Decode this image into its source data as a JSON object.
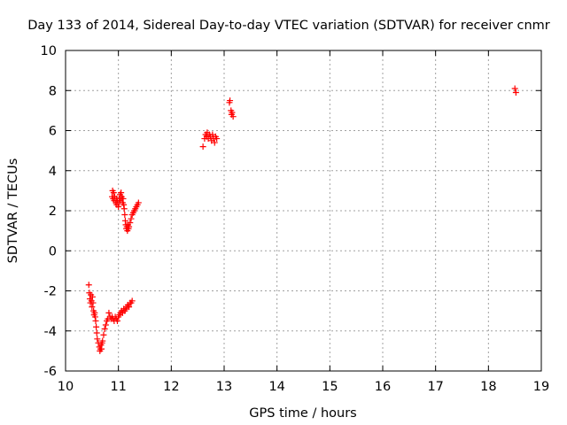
{
  "chart_data": {
    "type": "scatter",
    "title": "Day 133 of 2014, Sidereal Day-to-day VTEC variation (SDTVAR) for receiver cnmr",
    "xlabel": "GPS time / hours",
    "ylabel": "SDTVAR / TECUs",
    "xlim": [
      10,
      19
    ],
    "ylim": [
      -6,
      10
    ],
    "grid": true,
    "marker": "+",
    "xticks": [
      "10",
      "11",
      "12",
      "13",
      "14",
      "15",
      "16",
      "17",
      "18",
      "19"
    ],
    "yticks": [
      "-6",
      "-4",
      "-2",
      "0",
      "2",
      "4",
      "6",
      "8",
      "10"
    ],
    "series": [
      {
        "name": "SDTVAR",
        "color": "#ff0000",
        "points": [
          [
            10.44,
            -1.7
          ],
          [
            10.45,
            -2.1
          ],
          [
            10.46,
            -2.4
          ],
          [
            10.47,
            -2.6
          ],
          [
            10.48,
            -2.2
          ],
          [
            10.49,
            -2.5
          ],
          [
            10.5,
            -2.8
          ],
          [
            10.51,
            -2.3
          ],
          [
            10.52,
            -2.6
          ],
          [
            10.53,
            -3.0
          ],
          [
            10.54,
            -3.2
          ],
          [
            10.55,
            -3.1
          ],
          [
            10.56,
            -3.3
          ],
          [
            10.57,
            -3.5
          ],
          [
            10.58,
            -3.8
          ],
          [
            10.59,
            -4.1
          ],
          [
            10.6,
            -4.4
          ],
          [
            10.62,
            -4.6
          ],
          [
            10.64,
            -4.8
          ],
          [
            10.65,
            -5.0
          ],
          [
            10.66,
            -4.9
          ],
          [
            10.67,
            -4.7
          ],
          [
            10.68,
            -4.9
          ],
          [
            10.69,
            -4.6
          ],
          [
            10.7,
            -4.5
          ],
          [
            10.72,
            -4.2
          ],
          [
            10.74,
            -3.9
          ],
          [
            10.76,
            -3.7
          ],
          [
            10.78,
            -3.5
          ],
          [
            10.8,
            -3.4
          ],
          [
            10.82,
            -3.1
          ],
          [
            10.84,
            -3.3
          ],
          [
            10.86,
            -3.4
          ],
          [
            10.88,
            -3.3
          ],
          [
            10.9,
            -3.4
          ],
          [
            10.92,
            -3.5
          ],
          [
            10.94,
            -3.3
          ],
          [
            10.96,
            -3.4
          ],
          [
            10.98,
            -3.5
          ],
          [
            11.0,
            -3.3
          ],
          [
            11.02,
            -3.2
          ],
          [
            11.04,
            -3.1
          ],
          [
            11.06,
            -3.0
          ],
          [
            11.08,
            -3.1
          ],
          [
            11.1,
            -2.9
          ],
          [
            11.12,
            -3.0
          ],
          [
            11.14,
            -2.9
          ],
          [
            11.16,
            -2.8
          ],
          [
            11.18,
            -2.7
          ],
          [
            11.2,
            -2.8
          ],
          [
            11.22,
            -2.6
          ],
          [
            11.24,
            -2.6
          ],
          [
            11.26,
            -2.5
          ],
          [
            10.88,
            2.7
          ],
          [
            10.89,
            3.0
          ],
          [
            10.9,
            2.6
          ],
          [
            10.91,
            2.9
          ],
          [
            10.92,
            2.5
          ],
          [
            10.93,
            2.7
          ],
          [
            10.95,
            2.4
          ],
          [
            10.96,
            2.6
          ],
          [
            10.97,
            2.3
          ],
          [
            10.98,
            2.5
          ],
          [
            11.0,
            2.2
          ],
          [
            11.01,
            2.4
          ],
          [
            11.02,
            2.6
          ],
          [
            11.03,
            2.8
          ],
          [
            11.04,
            2.5
          ],
          [
            11.05,
            2.9
          ],
          [
            11.06,
            2.7
          ],
          [
            11.07,
            2.6
          ],
          [
            11.08,
            2.4
          ],
          [
            11.09,
            2.6
          ],
          [
            11.1,
            2.3
          ],
          [
            11.11,
            2.1
          ],
          [
            11.12,
            1.8
          ],
          [
            11.13,
            1.5
          ],
          [
            11.14,
            1.3
          ],
          [
            11.15,
            1.1
          ],
          [
            11.16,
            1.2
          ],
          [
            11.17,
            1.0
          ],
          [
            11.18,
            1.3
          ],
          [
            11.19,
            1.1
          ],
          [
            11.2,
            1.2
          ],
          [
            11.22,
            1.4
          ],
          [
            11.24,
            1.6
          ],
          [
            11.26,
            1.8
          ],
          [
            11.28,
            1.9
          ],
          [
            11.3,
            2.0
          ],
          [
            11.32,
            2.1
          ],
          [
            11.34,
            2.2
          ],
          [
            11.36,
            2.3
          ],
          [
            11.38,
            2.4
          ],
          [
            12.6,
            5.2
          ],
          [
            12.63,
            5.6
          ],
          [
            12.65,
            5.8
          ],
          [
            12.67,
            5.7
          ],
          [
            12.68,
            5.9
          ],
          [
            12.7,
            5.6
          ],
          [
            12.72,
            5.8
          ],
          [
            12.74,
            5.7
          ],
          [
            12.76,
            5.5
          ],
          [
            12.78,
            5.8
          ],
          [
            12.8,
            5.6
          ],
          [
            12.82,
            5.4
          ],
          [
            12.84,
            5.7
          ],
          [
            12.86,
            5.6
          ],
          [
            13.1,
            7.4
          ],
          [
            13.11,
            7.5
          ],
          [
            13.13,
            7.0
          ],
          [
            13.14,
            6.8
          ],
          [
            13.15,
            6.9
          ],
          [
            13.17,
            6.7
          ],
          [
            18.5,
            8.1
          ],
          [
            18.52,
            7.9
          ]
        ]
      }
    ]
  }
}
